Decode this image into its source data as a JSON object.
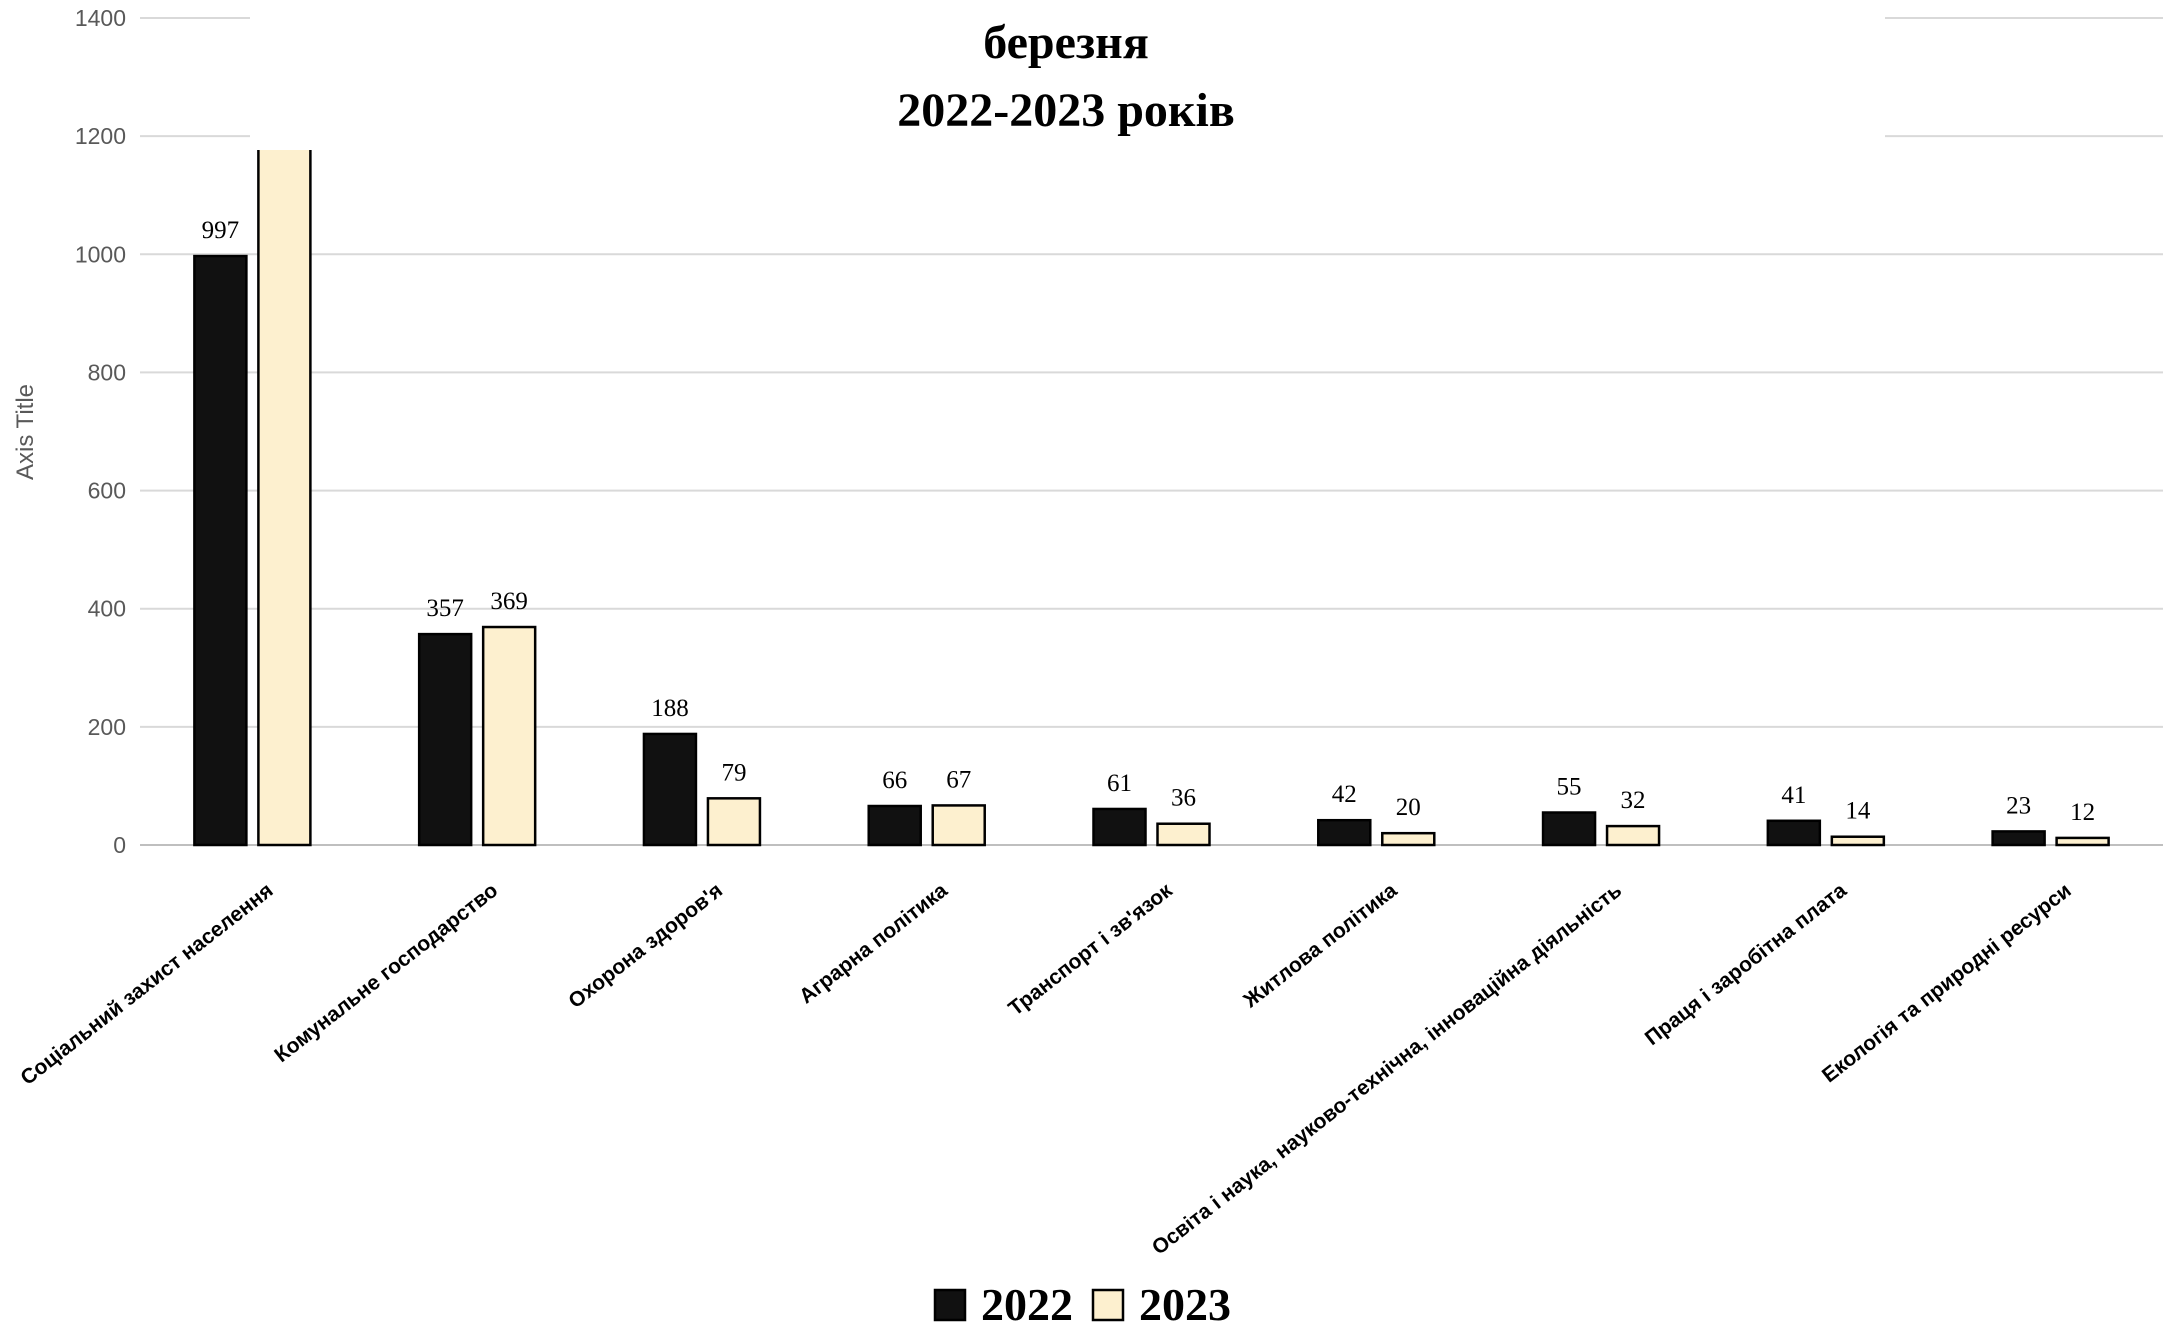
{
  "chart_data": {
    "type": "bar",
    "title_lines": [
      "березня",
      "2022-2023 років"
    ],
    "ylabel": "Axis Title",
    "ylim": [
      0,
      1400
    ],
    "yticks": [
      0,
      200,
      400,
      600,
      800,
      1000,
      1200,
      1400
    ],
    "grid": true,
    "legend_position": "bottom",
    "categories": [
      "Соціальний захист населення",
      "Комунальне господарство",
      "Охорона здоров'я",
      "Аграрна політика",
      "Транспорт і зв'язок",
      "Житлова політика",
      "Освіта і наука, науково-технічна, інноваційна діяльність",
      "Праця і заробітна плата",
      "Екологія та природні ресурси"
    ],
    "series": [
      {
        "name": "2022",
        "color": "#111111",
        "values": [
          997,
          357,
          188,
          66,
          61,
          42,
          55,
          41,
          23
        ]
      },
      {
        "name": "2023",
        "color": "#fdf0cf",
        "values": [
          1185,
          369,
          79,
          67,
          36,
          20,
          32,
          14,
          12
        ]
      }
    ],
    "data_labels": [
      [
        "997",
        "357",
        "188",
        "66",
        "61",
        "42",
        "55",
        "41",
        "23"
      ],
      [
        "",
        "369",
        "79",
        "67",
        "36",
        "20",
        "32",
        "14",
        "12"
      ]
    ]
  }
}
